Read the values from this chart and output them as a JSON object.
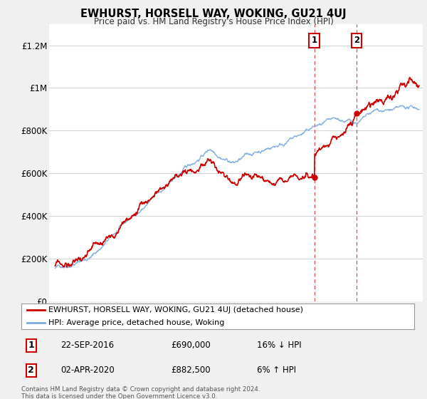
{
  "title": "EWHURST, HORSELL WAY, WOKING, GU21 4UJ",
  "subtitle": "Price paid vs. HM Land Registry's House Price Index (HPI)",
  "ylabel_ticks": [
    "£0",
    "£200K",
    "£400K",
    "£600K",
    "£800K",
    "£1M",
    "£1.2M"
  ],
  "ytick_values": [
    0,
    200000,
    400000,
    600000,
    800000,
    1000000,
    1200000
  ],
  "ylim": [
    0,
    1300000
  ],
  "xlim_start": 1994.5,
  "xlim_end": 2025.8,
  "hpi_color": "#7aaadd",
  "price_color": "#cc0000",
  "transaction1": {
    "date": "22-SEP-2016",
    "price": 690000,
    "label": "16% ↓ HPI",
    "x": 2016.73
  },
  "transaction2": {
    "date": "02-APR-2020",
    "price": 882500,
    "label": "6% ↑ HPI",
    "x": 2020.25
  },
  "legend_entry1": "EWHURST, HORSELL WAY, WOKING, GU21 4UJ (detached house)",
  "legend_entry2": "HPI: Average price, detached house, Woking",
  "footer": "Contains HM Land Registry data © Crown copyright and database right 2024.\nThis data is licensed under the Open Government Licence v3.0.",
  "background_color": "#f0f0f0",
  "plot_bg_color": "#ffffff",
  "dashed_line_color": "#cc0000"
}
